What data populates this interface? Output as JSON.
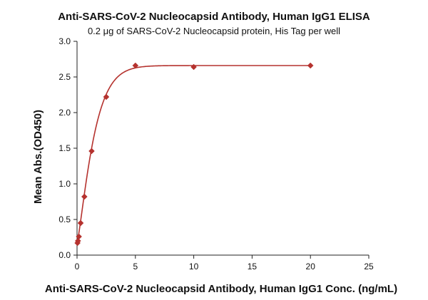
{
  "chart_data": {
    "type": "scatter",
    "title": "Anti-SARS-CoV-2 Nucleocapsid Antibody, Human IgG1 ELISA",
    "subtitle": "0.2 μg of SARS-CoV-2 Nucleocapsid protein, His Tag per well",
    "xlabel": "Anti-SARS-CoV-2 Nucleocapsid Antibody, Human IgG1 Conc. (ng/mL)",
    "ylabel": "Mean Abs.(OD450)",
    "xlim": [
      0,
      25
    ],
    "ylim": [
      0,
      3.0
    ],
    "xticks": [
      0,
      5,
      10,
      15,
      20,
      25
    ],
    "yticks": [
      0.0,
      0.5,
      1.0,
      1.5,
      2.0,
      2.5,
      3.0
    ],
    "xtick_labels": [
      "0",
      "5",
      "10",
      "15",
      "20",
      "25"
    ],
    "ytick_labels": [
      "0.0",
      "0.5",
      "1.0",
      "1.5",
      "2.0",
      "2.5",
      "3.0"
    ],
    "grid": false,
    "color": "#b5322e",
    "series": [
      {
        "marker": "diamond",
        "x": [
          0.04,
          0.08,
          0.16,
          0.31,
          0.63,
          1.25,
          2.5,
          5,
          10,
          20
        ],
        "y": [
          0.17,
          0.2,
          0.26,
          0.45,
          0.82,
          1.46,
          2.22,
          2.66,
          2.64,
          2.66
        ],
        "fit": "sigmoidal"
      }
    ]
  }
}
